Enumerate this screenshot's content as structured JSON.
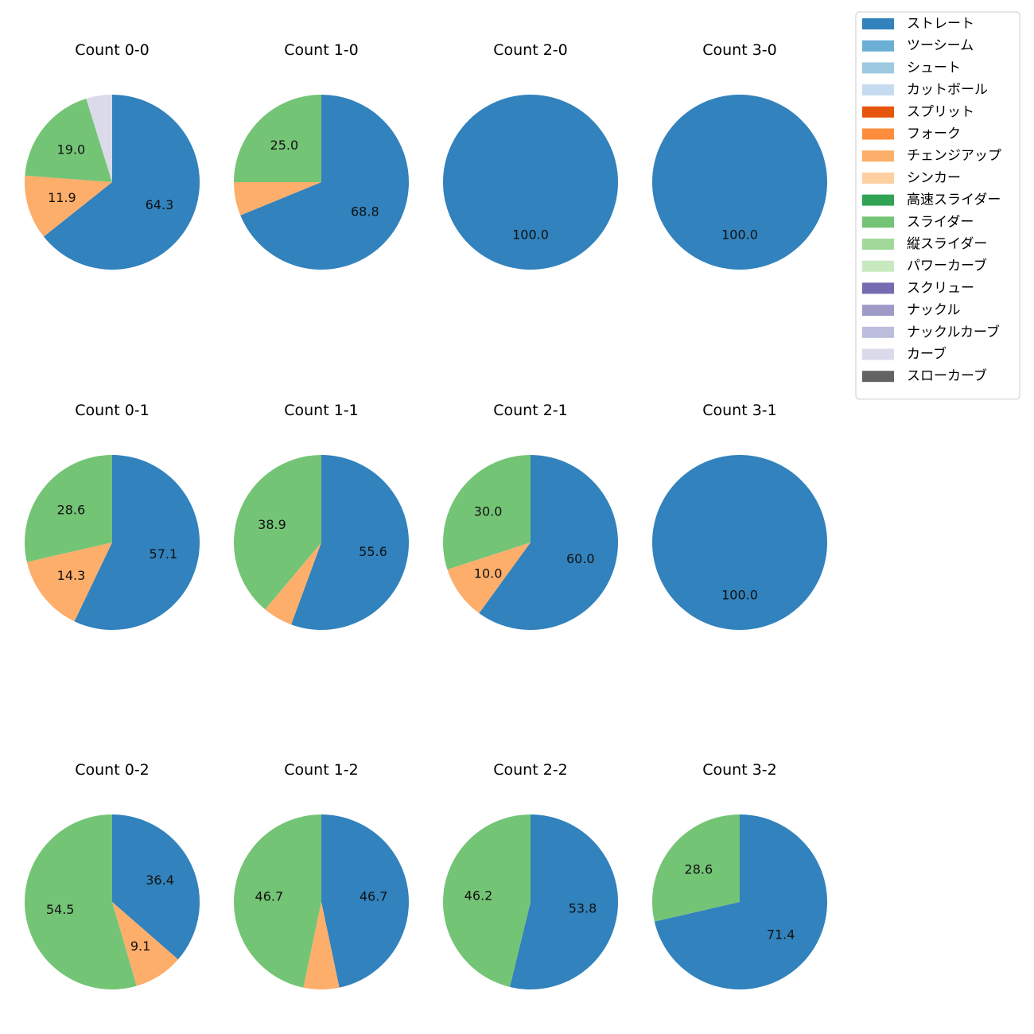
{
  "chart_data": {
    "type": "pie",
    "legend": {
      "placement": "top-right",
      "entries": [
        {
          "name": "ストレート",
          "color": "#3182bd"
        },
        {
          "name": "ツーシーム",
          "color": "#6baed6"
        },
        {
          "name": "シュート",
          "color": "#9ecae1"
        },
        {
          "name": "カットボール",
          "color": "#c6dbef"
        },
        {
          "name": "スプリット",
          "color": "#e6550d"
        },
        {
          "name": "フォーク",
          "color": "#fd8d3c"
        },
        {
          "name": "チェンジアップ",
          "color": "#fdae6b"
        },
        {
          "name": "シンカー",
          "color": "#fdd0a2"
        },
        {
          "name": "高速スライダー",
          "color": "#31a354"
        },
        {
          "name": "スライダー",
          "color": "#74c476"
        },
        {
          "name": "縦スライダー",
          "color": "#a1d99b"
        },
        {
          "name": "パワーカーブ",
          "color": "#c7e9c0"
        },
        {
          "name": "スクリュー",
          "color": "#756bb1"
        },
        {
          "name": "ナックル",
          "color": "#9e9ac8"
        },
        {
          "name": "ナックルカーブ",
          "color": "#bcbddc"
        },
        {
          "name": "カーブ",
          "color": "#dadaeb"
        },
        {
          "name": "スローカーブ",
          "color": "#636363"
        }
      ]
    },
    "charts": [
      {
        "title": "Count 0-0",
        "slices": [
          {
            "name": "ストレート",
            "value": 64.3,
            "label": "64.3"
          },
          {
            "name": "チェンジアップ",
            "value": 11.9,
            "label": "11.9"
          },
          {
            "name": "スライダー",
            "value": 19.0,
            "label": "19.0"
          },
          {
            "name": "カーブ",
            "value": 4.8,
            "label": ""
          }
        ]
      },
      {
        "title": "Count 1-0",
        "slices": [
          {
            "name": "ストレート",
            "value": 68.8,
            "label": "68.8"
          },
          {
            "name": "チェンジアップ",
            "value": 6.2,
            "label": ""
          },
          {
            "name": "スライダー",
            "value": 25.0,
            "label": "25.0"
          }
        ]
      },
      {
        "title": "Count 2-0",
        "slices": [
          {
            "name": "ストレート",
            "value": 100.0,
            "label": "100.0"
          }
        ]
      },
      {
        "title": "Count 3-0",
        "slices": [
          {
            "name": "ストレート",
            "value": 100.0,
            "label": "100.0"
          }
        ]
      },
      {
        "title": "Count 0-1",
        "slices": [
          {
            "name": "ストレート",
            "value": 57.1,
            "label": "57.1"
          },
          {
            "name": "チェンジアップ",
            "value": 14.3,
            "label": "14.3"
          },
          {
            "name": "スライダー",
            "value": 28.6,
            "label": "28.6"
          }
        ]
      },
      {
        "title": "Count 1-1",
        "slices": [
          {
            "name": "ストレート",
            "value": 55.6,
            "label": "55.6"
          },
          {
            "name": "チェンジアップ",
            "value": 5.5,
            "label": ""
          },
          {
            "name": "スライダー",
            "value": 38.9,
            "label": "38.9"
          }
        ]
      },
      {
        "title": "Count 2-1",
        "slices": [
          {
            "name": "ストレート",
            "value": 60.0,
            "label": "60.0"
          },
          {
            "name": "チェンジアップ",
            "value": 10.0,
            "label": "10.0"
          },
          {
            "name": "スライダー",
            "value": 30.0,
            "label": "30.0"
          }
        ]
      },
      {
        "title": "Count 3-1",
        "slices": [
          {
            "name": "ストレート",
            "value": 100.0,
            "label": "100.0"
          }
        ]
      },
      {
        "title": "Count 0-2",
        "slices": [
          {
            "name": "ストレート",
            "value": 36.4,
            "label": "36.4"
          },
          {
            "name": "チェンジアップ",
            "value": 9.1,
            "label": "9.1"
          },
          {
            "name": "スライダー",
            "value": 54.5,
            "label": "54.5"
          }
        ]
      },
      {
        "title": "Count 1-2",
        "slices": [
          {
            "name": "ストレート",
            "value": 46.7,
            "label": "46.7"
          },
          {
            "name": "チェンジアップ",
            "value": 6.6,
            "label": ""
          },
          {
            "name": "スライダー",
            "value": 46.7,
            "label": "46.7"
          }
        ]
      },
      {
        "title": "Count 2-2",
        "slices": [
          {
            "name": "ストレート",
            "value": 53.8,
            "label": "53.8"
          },
          {
            "name": "スライダー",
            "value": 46.2,
            "label": "46.2"
          }
        ]
      },
      {
        "title": "Count 3-2",
        "slices": [
          {
            "name": "ストレート",
            "value": 71.4,
            "label": "71.4"
          },
          {
            "name": "スライダー",
            "value": 28.6,
            "label": "28.6"
          }
        ]
      }
    ]
  }
}
